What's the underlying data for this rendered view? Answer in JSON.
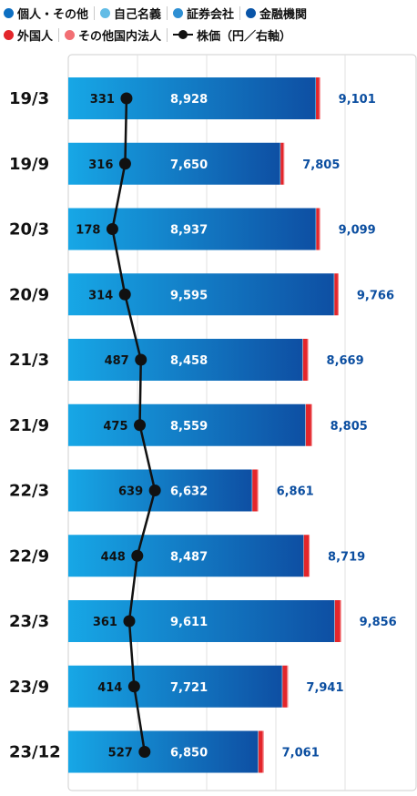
{
  "legend": {
    "individual": "個人・その他",
    "self_owned": "自己名義",
    "securities": "証券会社",
    "financial": "金融機関",
    "foreign": "外国人",
    "other_domestic": "その他国内法人",
    "stock_price": "株価（円／右軸）"
  },
  "colors": {
    "individual": "#0d6fc2",
    "self_owned": "#62bce6",
    "securities": "#2e8fd3",
    "financial": "#0a55a8",
    "foreign": "#e3262b",
    "other_domestic": "#f26f74",
    "bar_gradient_start": "#17a7e6",
    "bar_gradient_end": "#0e4fa3",
    "total_label": "#0b4ea0",
    "line": "#111111"
  },
  "chart_data": {
    "type": "bar",
    "orientation": "horizontal",
    "stacked": true,
    "categories": [
      "19/3",
      "19/9",
      "20/3",
      "20/9",
      "21/3",
      "21/9",
      "22/3",
      "22/9",
      "23/3",
      "23/9",
      "23/12"
    ],
    "series": [
      {
        "name": "個人・その他",
        "values": [
          8928,
          7650,
          8937,
          9595,
          8458,
          8559,
          6632,
          8487,
          9611,
          7721,
          6850
        ]
      },
      {
        "name": "自己名義",
        "values": [
          20,
          20,
          20,
          20,
          20,
          20,
          20,
          20,
          20,
          20,
          20
        ]
      },
      {
        "name": "外国人",
        "values": [
          120,
          100,
          110,
          120,
          160,
          200,
          180,
          180,
          190,
          160,
          150
        ]
      },
      {
        "name": "その他国内法人",
        "values": [
          33,
          35,
          32,
          31,
          31,
          26,
          29,
          32,
          35,
          40,
          41
        ]
      }
    ],
    "totals": [
      9101,
      7805,
      9099,
      9766,
      8669,
      8805,
      6861,
      8719,
      9856,
      7941,
      7061
    ],
    "stock_price": {
      "name": "株価（円／右軸）",
      "values": [
        331,
        316,
        178,
        314,
        487,
        475,
        639,
        448,
        361,
        414,
        527
      ]
    },
    "individual_labels": [
      "8,928",
      "7,650",
      "8,937",
      "9,595",
      "8,458",
      "8,559",
      "6,632",
      "8,487",
      "9,611",
      "7,721",
      "6,850"
    ],
    "total_labels": [
      "9,101",
      "7,805",
      "9,099",
      "9,766",
      "8,669",
      "8,805",
      "6,861",
      "8,719",
      "9,856",
      "7,941",
      "7,061"
    ],
    "price_labels": [
      "331",
      "316",
      "178",
      "314",
      "487",
      "475",
      "639",
      "448",
      "361",
      "414",
      "527"
    ],
    "xlim": [
      0,
      10000
    ],
    "price_axis": [
      -300,
      2700
    ],
    "grid": true
  }
}
